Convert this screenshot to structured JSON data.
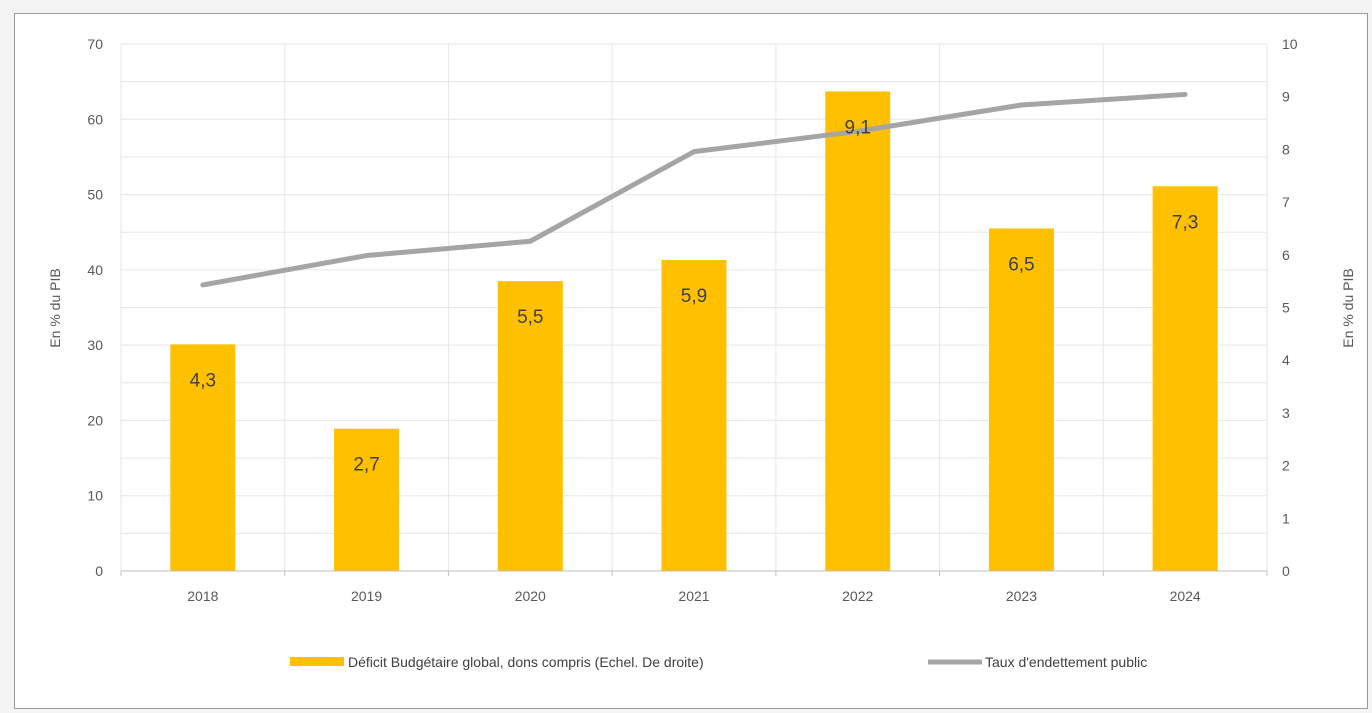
{
  "chart_data": {
    "type": "bar",
    "categories": [
      "2018",
      "2019",
      "2020",
      "2021",
      "2022",
      "2023",
      "2024"
    ],
    "series": [
      {
        "name": "Déficit Budgétaire global, dons compris (Echel. De droite)",
        "type": "bar",
        "axis": "right",
        "color": "#FFC000",
        "values": [
          4.3,
          2.7,
          5.5,
          5.9,
          9.1,
          6.5,
          7.3
        ],
        "labels": [
          "4,3",
          "2,7",
          "5,5",
          "5,9",
          "9,1",
          "6,5",
          "7,3"
        ]
      },
      {
        "name": "Taux d'endettement public",
        "type": "line",
        "axis": "left",
        "color": "#A5A5A5",
        "values": [
          38.0,
          41.9,
          43.8,
          55.7,
          58.4,
          61.9,
          63.3
        ]
      }
    ],
    "y_left": {
      "label": "En % du PIB",
      "range": [
        0,
        70
      ],
      "ticks": [
        "0",
        "10",
        "20",
        "30",
        "40",
        "50",
        "60",
        "70"
      ]
    },
    "y_right": {
      "label": "En % du PIB",
      "range": [
        0,
        10
      ],
      "ticks": [
        "0",
        "1",
        "2",
        "3",
        "4",
        "5",
        "6",
        "7",
        "8",
        "9",
        "10"
      ]
    },
    "grid": true,
    "legend_position": "bottom"
  }
}
